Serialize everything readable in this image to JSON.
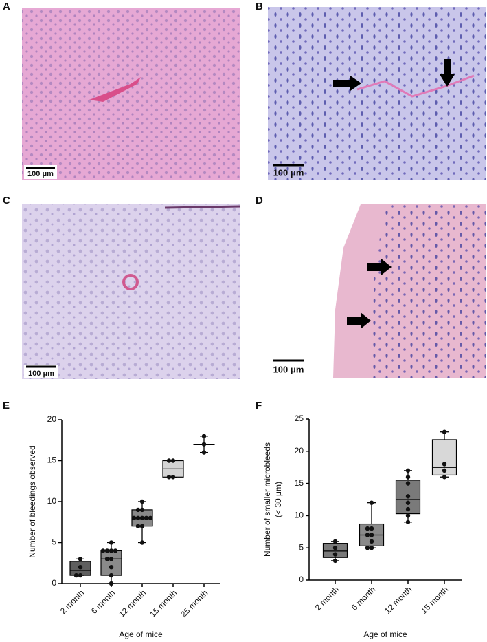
{
  "panels": {
    "A": {
      "label": "A",
      "scale": "100 μm"
    },
    "B": {
      "label": "B",
      "scale": "100 μm"
    },
    "C": {
      "label": "C",
      "scale": "100 μm"
    },
    "D": {
      "label": "D",
      "scale": "100 μm"
    },
    "E": {
      "label": "E"
    },
    "F": {
      "label": "F"
    }
  },
  "chart_data": [
    {
      "type": "box",
      "ylabel": "Number of bleedings observed",
      "xlabel": "Age of mice",
      "categories": [
        "2 month",
        "6 month",
        "12 month",
        "15 month",
        "25 month"
      ],
      "ylim": [
        0,
        20
      ],
      "yticks": [
        0,
        5,
        10,
        15,
        20
      ],
      "boxes": [
        {
          "min": 1,
          "q1": 1,
          "median": 1.6,
          "q3": 2.7,
          "max": 3,
          "points": [
            3,
            2,
            1,
            1
          ],
          "color": "#5f5f5f"
        },
        {
          "min": 0,
          "q1": 1,
          "median": 3,
          "q3": 4,
          "max": 5,
          "points": [
            5,
            4,
            4,
            4,
            4,
            3,
            3,
            2,
            1,
            0
          ],
          "color": "#8a8a8a"
        },
        {
          "min": 5,
          "q1": 7,
          "median": 8,
          "q3": 9,
          "max": 10,
          "points": [
            10,
            9,
            9,
            8,
            8,
            8,
            8,
            8,
            7,
            7,
            5
          ],
          "color": "#8a8a8a"
        },
        {
          "min": 13,
          "q1": 13,
          "median": 14,
          "q3": 15,
          "max": 15,
          "points": [
            15,
            15,
            13,
            13
          ],
          "color": "#d4d4d4"
        },
        {
          "min": 16,
          "q1": 17,
          "median": 17,
          "q3": 17,
          "max": 18,
          "points": [
            18,
            17,
            16
          ],
          "color": "#ffffff"
        }
      ]
    },
    {
      "type": "box",
      "ylabel": [
        "Number of smaller microbleeds",
        "(< 30 μm)"
      ],
      "xlabel": "Age of mice",
      "categories": [
        "2 month",
        "6 month",
        "12 month",
        "15 month"
      ],
      "ylim": [
        0,
        25
      ],
      "yticks": [
        0,
        5,
        10,
        15,
        20,
        25
      ],
      "boxes": [
        {
          "min": 3,
          "q1": 3.5,
          "median": 4.5,
          "q3": 5.7,
          "max": 6,
          "points": [
            6,
            5,
            4,
            3
          ],
          "color": "#7a7a7a"
        },
        {
          "min": 5,
          "q1": 5.3,
          "median": 7,
          "q3": 8.7,
          "max": 12,
          "points": [
            12,
            8,
            8,
            7,
            7,
            6,
            5,
            5
          ],
          "color": "#8a8a8a"
        },
        {
          "min": 9,
          "q1": 10.3,
          "median": 12.5,
          "q3": 15.5,
          "max": 17,
          "points": [
            17,
            16,
            15,
            13,
            12,
            11,
            10,
            9
          ],
          "color": "#7a7a7a"
        },
        {
          "min": 16,
          "q1": 16.3,
          "median": 17.5,
          "q3": 21.8,
          "max": 23,
          "points": [
            23,
            18,
            17,
            16
          ],
          "color": "#d8d8d8"
        }
      ]
    }
  ]
}
